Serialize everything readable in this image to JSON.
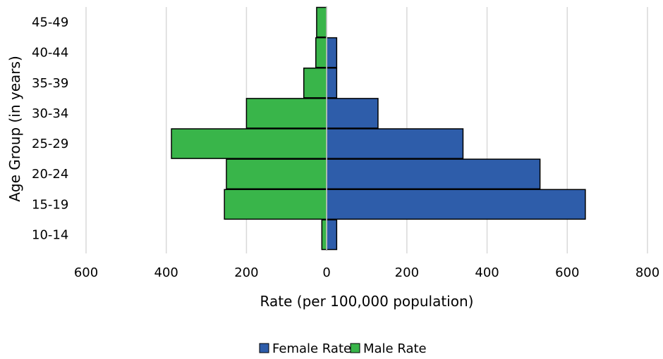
{
  "chart_data": {
    "type": "bar",
    "orientation": "horizontal",
    "categories": [
      "10-14",
      "15-19",
      "20-24",
      "25-29",
      "30-34",
      "35-39",
      "40-44",
      "45-49"
    ],
    "series": [
      {
        "name": "Female Rate",
        "color": "#2E5DAA",
        "values": [
          25,
          645,
          532,
          340,
          128,
          25,
          25,
          0
        ]
      },
      {
        "name": "Male Rate",
        "color": "#39B54A",
        "values": [
          12,
          255,
          250,
          387,
          200,
          57,
          27,
          25
        ]
      }
    ],
    "x_tick_labels": [
      "600",
      "400",
      "200",
      "0",
      "200",
      "400",
      "600",
      "800"
    ],
    "xlim": [
      -600,
      800
    ],
    "xlabel": "Rate (per 100,000 population)",
    "ylabel": "Age Group (in years)",
    "grid": "vertical",
    "legend_position": "bottom"
  }
}
